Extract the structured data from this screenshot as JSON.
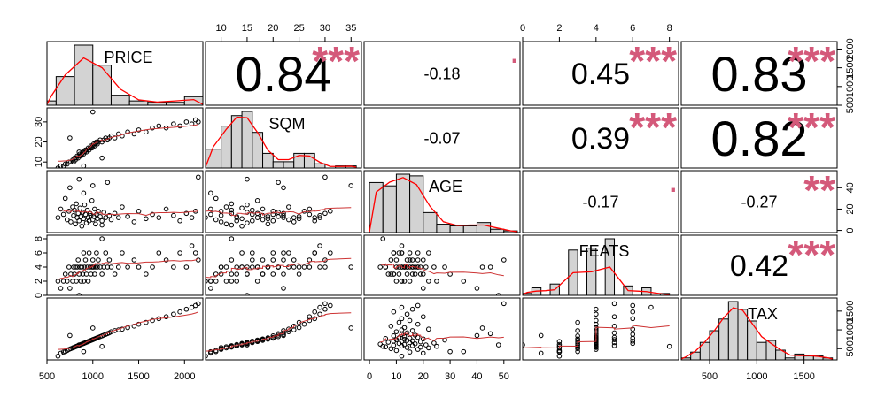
{
  "chart_data": {
    "type": "scatter-matrix",
    "variables": [
      "PRICE",
      "SQM",
      "AGE",
      "FEATS",
      "TAX"
    ],
    "colors": {
      "smooth": "#cd3333",
      "density": "#ff0000",
      "stars": "#d4597a",
      "bars": "#d3d3d3"
    },
    "ranges": {
      "PRICE": [
        500,
        2200
      ],
      "SQM": [
        7,
        37
      ],
      "AGE": [
        -2,
        56
      ],
      "FEATS": [
        0,
        8.5
      ],
      "TAX": [
        200,
        1850
      ]
    },
    "ticks": {
      "PRICE": [
        {
          "v": 500,
          "t": "500"
        },
        {
          "v": 1000,
          "t": "1000"
        },
        {
          "v": 1500,
          "t": "1500"
        },
        {
          "v": 2000,
          "t": "2000"
        }
      ],
      "SQM": [
        {
          "v": 10,
          "t": "10"
        },
        {
          "v": 15,
          "t": "15"
        },
        {
          "v": 20,
          "t": "20"
        },
        {
          "v": 25,
          "t": "25"
        },
        {
          "v": 30,
          "t": "30"
        },
        {
          "v": 35,
          "t": "35"
        }
      ],
      "SQM_left": [
        {
          "v": 10,
          "t": "10"
        },
        {
          "v": 20,
          "t": "20"
        },
        {
          "v": 30,
          "t": "30"
        }
      ],
      "AGE": [
        {
          "v": 0,
          "t": "0"
        },
        {
          "v": 10,
          "t": "10"
        },
        {
          "v": 20,
          "t": "20"
        },
        {
          "v": 30,
          "t": "30"
        },
        {
          "v": 40,
          "t": "40"
        },
        {
          "v": 50,
          "t": "50"
        }
      ],
      "AGE_right": [
        {
          "v": 0,
          "t": "0"
        },
        {
          "v": 20,
          "t": "20"
        },
        {
          "v": 40,
          "t": "40"
        }
      ],
      "FEATS": [
        {
          "v": 0,
          "t": "0"
        },
        {
          "v": 2,
          "t": "2"
        },
        {
          "v": 4,
          "t": "4"
        },
        {
          "v": 6,
          "t": "6"
        },
        {
          "v": 8,
          "t": "8"
        }
      ],
      "TAX": [
        {
          "v": 500,
          "t": "500"
        },
        {
          "v": 1000,
          "t": "1000"
        },
        {
          "v": 1500,
          "t": "1500"
        }
      ]
    },
    "correlations": [
      {
        "row": 0,
        "col": 1,
        "text": "0.84",
        "stars": "***",
        "size": "xl"
      },
      {
        "row": 0,
        "col": 2,
        "text": "-0.18",
        "stars": ".",
        "size": "s"
      },
      {
        "row": 0,
        "col": 3,
        "text": "0.45",
        "stars": "***",
        "size": "m"
      },
      {
        "row": 0,
        "col": 4,
        "text": "0.83",
        "stars": "***",
        "size": "xl"
      },
      {
        "row": 1,
        "col": 2,
        "text": "-0.07",
        "stars": "",
        "size": "s"
      },
      {
        "row": 1,
        "col": 3,
        "text": "0.39",
        "stars": "***",
        "size": "m"
      },
      {
        "row": 1,
        "col": 4,
        "text": "0.82",
        "stars": "***",
        "size": "xl"
      },
      {
        "row": 2,
        "col": 3,
        "text": "-0.17",
        "stars": ".",
        "size": "s"
      },
      {
        "row": 2,
        "col": 4,
        "text": "-0.27",
        "stars": "**",
        "size": "s"
      },
      {
        "row": 3,
        "col": 4,
        "text": "0.42",
        "stars": "***",
        "size": "m"
      }
    ],
    "histograms": {
      "PRICE": {
        "breaks": [
          500,
          600,
          800,
          1000,
          1200,
          1400,
          1600,
          1800,
          2000,
          2200
        ],
        "counts": [
          3,
          20,
          42,
          28,
          7,
          3,
          2,
          2,
          6
        ]
      },
      "SQM": {
        "breaks": [
          7,
          10,
          12,
          14,
          16,
          18,
          20,
          22,
          24,
          26,
          28,
          30,
          32,
          34,
          36
        ],
        "counts": [
          9,
          20,
          25,
          27,
          17,
          7,
          3,
          3,
          7,
          7,
          2,
          0,
          1,
          1
        ]
      },
      "AGE": {
        "breaks": [
          0,
          5,
          10,
          15,
          20,
          25,
          30,
          35,
          40,
          45,
          50,
          55
        ],
        "counts": [
          30,
          28,
          35,
          34,
          12,
          5,
          4,
          4,
          6,
          2,
          1
        ]
      },
      "FEATS": {
        "breaks": [
          0,
          0.5,
          1,
          1.5,
          2,
          2.5,
          3,
          3.5,
          4,
          4.5,
          5,
          5.5,
          6,
          6.5,
          7,
          7.5,
          8
        ],
        "counts": [
          1,
          4,
          0,
          6,
          0,
          24,
          0,
          25,
          0,
          30,
          0,
          5,
          0,
          4,
          0,
          1
        ]
      },
      "TAX": {
        "breaks": [
          200,
          300,
          400,
          500,
          600,
          700,
          800,
          900,
          1000,
          1100,
          1200,
          1300,
          1400,
          1500,
          1600,
          1700,
          1800
        ],
        "counts": [
          1,
          4,
          9,
          15,
          21,
          30,
          26,
          20,
          9,
          10,
          5,
          1,
          3,
          2,
          2,
          1
        ]
      }
    },
    "observations": [
      [
        620,
        7,
        12,
        2,
        300
      ],
      [
        650,
        8,
        20,
        1,
        380
      ],
      [
        680,
        8,
        15,
        2,
        410
      ],
      [
        700,
        9,
        30,
        3,
        420
      ],
      [
        720,
        9,
        10,
        2,
        450
      ],
      [
        740,
        10,
        18,
        4,
        480
      ],
      [
        760,
        10,
        8,
        3,
        500
      ],
      [
        780,
        11,
        22,
        2,
        520
      ],
      [
        790,
        10,
        14,
        4,
        530
      ],
      [
        800,
        12,
        19,
        3,
        540
      ],
      [
        810,
        11,
        6,
        4,
        550
      ],
      [
        820,
        12,
        25,
        2,
        560
      ],
      [
        830,
        13,
        12,
        4,
        570
      ],
      [
        840,
        12,
        16,
        5,
        580
      ],
      [
        850,
        13,
        9,
        3,
        590
      ],
      [
        860,
        14,
        21,
        4,
        600
      ],
      [
        870,
        13,
        13,
        2,
        610
      ],
      [
        880,
        14,
        4,
        4,
        620
      ],
      [
        890,
        15,
        17,
        3,
        630
      ],
      [
        900,
        14,
        11,
        6,
        640
      ],
      [
        910,
        15,
        24,
        4,
        650
      ],
      [
        920,
        16,
        15,
        5,
        660
      ],
      [
        930,
        15,
        7,
        3,
        670
      ],
      [
        940,
        16,
        19,
        4,
        680
      ],
      [
        950,
        17,
        12,
        2,
        690
      ],
      [
        960,
        16,
        9,
        6,
        700
      ],
      [
        970,
        17,
        16,
        4,
        710
      ],
      [
        980,
        18,
        14,
        3,
        720
      ],
      [
        990,
        17,
        28,
        4,
        730
      ],
      [
        1000,
        18,
        10,
        5,
        740
      ],
      [
        1010,
        19,
        13,
        4,
        750
      ],
      [
        1020,
        18,
        20,
        3,
        760
      ],
      [
        1030,
        19,
        6,
        4,
        770
      ],
      [
        1040,
        20,
        15,
        6,
        780
      ],
      [
        1050,
        19,
        11,
        4,
        790
      ],
      [
        1060,
        20,
        18,
        5,
        800
      ],
      [
        1080,
        21,
        13,
        4,
        820
      ],
      [
        1100,
        20,
        9,
        3,
        840
      ],
      [
        1120,
        21,
        17,
        4,
        860
      ],
      [
        1140,
        22,
        12,
        6,
        880
      ],
      [
        1160,
        21,
        45,
        4,
        900
      ],
      [
        1180,
        22,
        14,
        5,
        920
      ],
      [
        1200,
        23,
        10,
        4,
        950
      ],
      [
        1240,
        22,
        16,
        3,
        980
      ],
      [
        1280,
        24,
        12,
        4,
        1000
      ],
      [
        1320,
        23,
        22,
        6,
        1020
      ],
      [
        1380,
        25,
        13,
        4,
        1060
      ],
      [
        1450,
        24,
        8,
        5,
        1100
      ],
      [
        1500,
        26,
        18,
        4,
        1150
      ],
      [
        1580,
        25,
        11,
        3,
        1200
      ],
      [
        1650,
        27,
        15,
        4,
        1250
      ],
      [
        1720,
        28,
        12,
        6,
        1300
      ],
      [
        1800,
        27,
        20,
        5,
        1350
      ],
      [
        1880,
        29,
        14,
        4,
        1420
      ],
      [
        1950,
        28,
        9,
        6,
        1480
      ],
      [
        2020,
        30,
        16,
        4,
        1550
      ],
      [
        2080,
        29,
        12,
        7,
        1600
      ],
      [
        2120,
        31,
        18,
        6,
        1650
      ],
      [
        2150,
        30,
        50,
        5,
        1700
      ],
      [
        1000,
        35,
        42,
        4,
        1050
      ],
      [
        900,
        8,
        35,
        2,
        420
      ],
      [
        1100,
        12,
        5,
        8,
        560
      ],
      [
        750,
        22,
        40,
        1,
        850
      ],
      [
        850,
        15,
        48,
        0,
        600
      ]
    ]
  }
}
